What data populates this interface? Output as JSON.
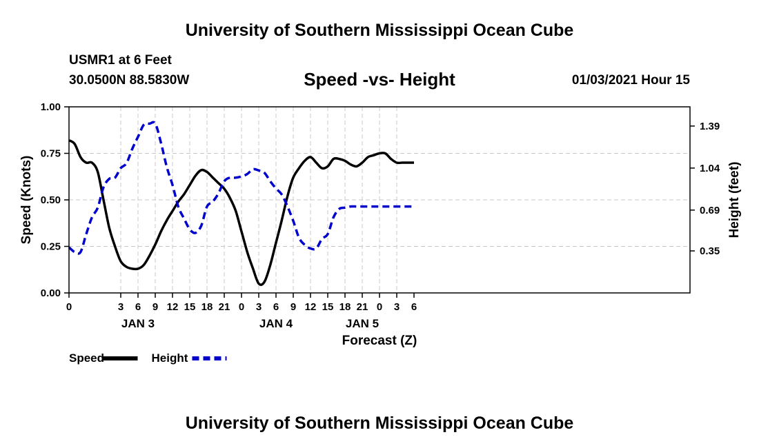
{
  "header": {
    "title": "University of Southern Mississippi Ocean Cube",
    "station": "USMR1 at 6 Feet",
    "coordinates": "30.0500N 88.5830W",
    "datetime": "01/03/2021 Hour 15"
  },
  "footer": {
    "title": "University of Southern Mississippi Ocean Cube"
  },
  "chart_data": {
    "type": "line",
    "title": "Speed -vs- Height",
    "xlabel": "Forecast (Z)",
    "ylabel_left": "Speed (Knots)",
    "ylabel_right": "Height (feet)",
    "x_unit": "hours since 2021-01-02 18Z",
    "xlim": [
      0,
      108
    ],
    "ylim_left": [
      0,
      1.0
    ],
    "ylim_right": [
      0.0,
      1.55
    ],
    "grid": true,
    "legend_position": "bottom-left",
    "x_ticks": [
      {
        "x": 0,
        "label": "0"
      },
      {
        "x": 9,
        "label": "3"
      },
      {
        "x": 12,
        "label": "6"
      },
      {
        "x": 15,
        "label": "9"
      },
      {
        "x": 18,
        "label": "12"
      },
      {
        "x": 21,
        "label": "15"
      },
      {
        "x": 24,
        "label": "18"
      },
      {
        "x": 27,
        "label": "21"
      },
      {
        "x": 30,
        "label": "0"
      },
      {
        "x": 33,
        "label": "3"
      },
      {
        "x": 36,
        "label": "6"
      },
      {
        "x": 39,
        "label": "9"
      },
      {
        "x": 42,
        "label": "12"
      },
      {
        "x": 45,
        "label": "15"
      },
      {
        "x": 48,
        "label": "18"
      },
      {
        "x": 51,
        "label": "21"
      },
      {
        "x": 54,
        "label": "0"
      },
      {
        "x": 57,
        "label": "3"
      },
      {
        "x": 60,
        "label": "6"
      }
    ],
    "date_labels": [
      {
        "x": 12,
        "label": "JAN 3"
      },
      {
        "x": 36,
        "label": "JAN 4"
      },
      {
        "x": 51,
        "label": "JAN 5"
      }
    ],
    "left_ticks": [
      {
        "v": 0.0,
        "label": "0.00"
      },
      {
        "v": 0.25,
        "label": "0.25"
      },
      {
        "v": 0.5,
        "label": "0.50"
      },
      {
        "v": 0.75,
        "label": "0.75"
      },
      {
        "v": 1.0,
        "label": "1.00"
      }
    ],
    "right_ticks": [
      {
        "v": 0.35,
        "label": "0.35"
      },
      {
        "v": 0.69,
        "label": "0.69"
      },
      {
        "v": 1.04,
        "label": "1.04"
      },
      {
        "v": 1.39,
        "label": "1.39"
      }
    ],
    "series": [
      {
        "name": "Speed",
        "axis": "left",
        "color": "#000000",
        "dash": "none",
        "x": [
          0,
          1,
          2,
          3,
          4,
          5,
          6,
          7,
          8,
          9,
          10,
          11,
          12,
          13,
          14,
          15,
          16,
          17,
          18,
          19,
          20,
          21,
          22,
          23,
          24,
          25,
          26,
          27,
          28,
          29,
          30,
          31,
          32,
          33,
          34,
          35,
          36,
          37,
          38,
          39,
          40,
          41,
          42,
          43,
          44,
          45,
          46,
          47,
          48,
          49,
          50,
          51,
          52,
          53,
          54,
          55,
          56,
          57,
          58,
          59,
          60
        ],
        "y": [
          0.82,
          0.8,
          0.73,
          0.7,
          0.7,
          0.65,
          0.5,
          0.35,
          0.25,
          0.17,
          0.14,
          0.13,
          0.13,
          0.15,
          0.2,
          0.26,
          0.33,
          0.39,
          0.44,
          0.49,
          0.53,
          0.58,
          0.63,
          0.66,
          0.65,
          0.62,
          0.59,
          0.56,
          0.51,
          0.44,
          0.33,
          0.22,
          0.13,
          0.05,
          0.06,
          0.15,
          0.27,
          0.39,
          0.52,
          0.62,
          0.67,
          0.71,
          0.73,
          0.7,
          0.67,
          0.68,
          0.72,
          0.72,
          0.71,
          0.69,
          0.68,
          0.7,
          0.73,
          0.74,
          0.75,
          0.75,
          0.72,
          0.7,
          0.7,
          0.7,
          0.7
        ]
      },
      {
        "name": "Height",
        "axis": "right",
        "color": "#0000cc",
        "dash": "10,6",
        "x": [
          0,
          1,
          2,
          3,
          4,
          5,
          6,
          7,
          8,
          9,
          10,
          11,
          12,
          13,
          14,
          15,
          16,
          17,
          18,
          19,
          20,
          21,
          22,
          23,
          24,
          25,
          26,
          27,
          28,
          29,
          30,
          31,
          32,
          33,
          34,
          35,
          36,
          37,
          38,
          39,
          40,
          41,
          42,
          43,
          44,
          45,
          46,
          47,
          48,
          49,
          50,
          51,
          52,
          53,
          54,
          55,
          56,
          57,
          58,
          59,
          60
        ],
        "y": [
          0.38,
          0.34,
          0.34,
          0.49,
          0.63,
          0.71,
          0.88,
          0.95,
          0.96,
          1.04,
          1.08,
          1.2,
          1.3,
          1.4,
          1.41,
          1.41,
          1.25,
          1.05,
          0.9,
          0.72,
          0.62,
          0.53,
          0.5,
          0.56,
          0.72,
          0.76,
          0.83,
          0.93,
          0.96,
          0.96,
          0.97,
          0.99,
          1.03,
          1.02,
          1.0,
          0.93,
          0.87,
          0.82,
          0.72,
          0.6,
          0.46,
          0.4,
          0.37,
          0.37,
          0.45,
          0.49,
          0.63,
          0.7,
          0.71,
          0.72,
          0.72,
          0.72,
          0.72,
          0.72,
          0.72,
          0.72,
          0.72,
          0.72,
          0.72,
          0.72,
          0.72
        ]
      }
    ]
  }
}
